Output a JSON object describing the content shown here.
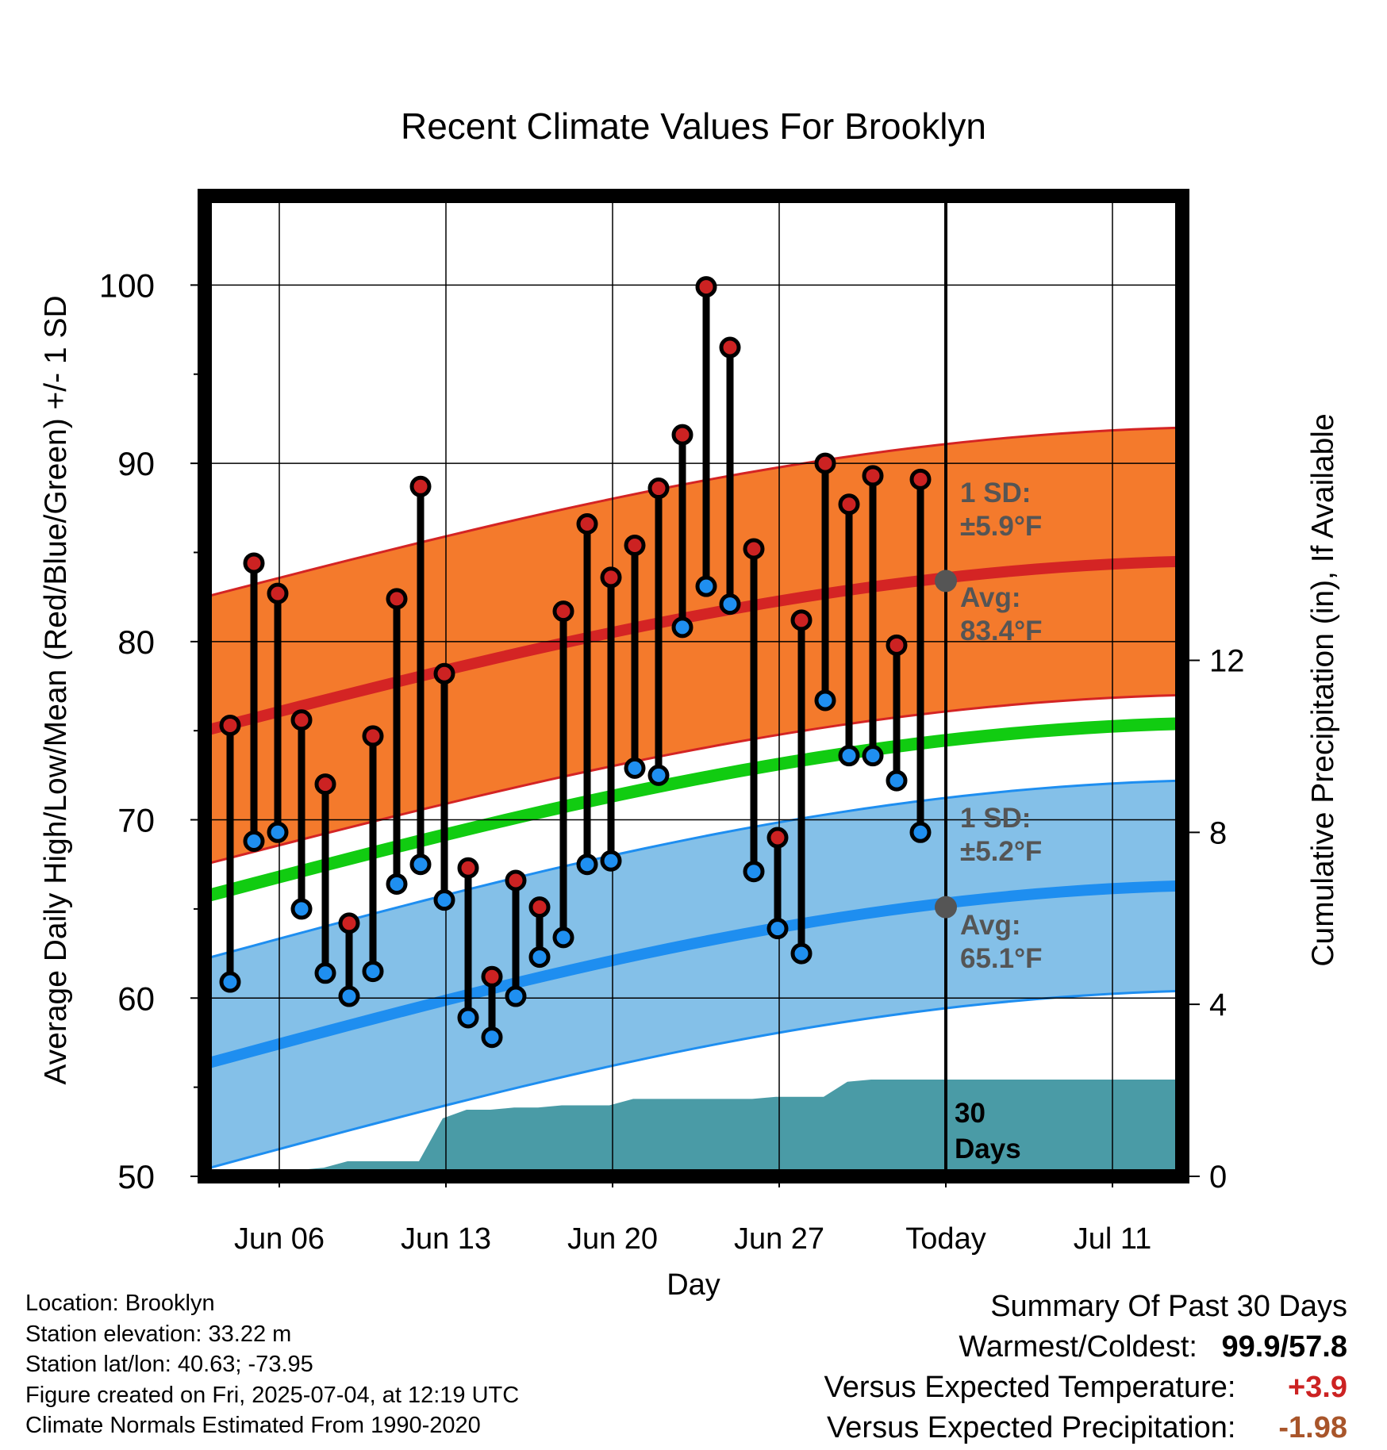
{
  "chart_data": {
    "type": "line",
    "title": "Recent Climate Values For Brooklyn",
    "xlabel": "Day",
    "ylabel": "Average Daily High/Low/Mean (Red/Blue/Green) +/- 1 SD",
    "y2label": "Cumulative Precipitation (in), If Available",
    "ylim": [
      50,
      105
    ],
    "y2lim": [
      0,
      22.8
    ],
    "yticks": [
      "50",
      "60",
      "70",
      "80",
      "90",
      "100"
    ],
    "y2ticks": [
      "0",
      "4",
      "8",
      "12"
    ],
    "xticks": [
      "Jun 06",
      "Jun 13",
      "Jun 20",
      "Jun 27",
      "Today",
      "Jul 11"
    ],
    "grid": true,
    "days": [
      "Jun 04",
      "Jun 05",
      "Jun 06",
      "Jun 07",
      "Jun 08",
      "Jun 09",
      "Jun 10",
      "Jun 11",
      "Jun 12",
      "Jun 13",
      "Jun 14",
      "Jun 15",
      "Jun 16",
      "Jun 17",
      "Jun 18",
      "Jun 19",
      "Jun 20",
      "Jun 21",
      "Jun 22",
      "Jun 23",
      "Jun 24",
      "Jun 25",
      "Jun 26",
      "Jun 27",
      "Jun 28",
      "Jun 29",
      "Jun 30",
      "Jul 01",
      "Jul 02",
      "Jul 03"
    ],
    "series": [
      {
        "name": "High",
        "values": [
          75.3,
          84.4,
          82.7,
          75.6,
          72.0,
          64.2,
          74.7,
          82.4,
          88.7,
          78.2,
          67.3,
          61.2,
          66.6,
          65.1,
          81.7,
          86.6,
          83.6,
          85.4,
          88.6,
          91.6,
          99.9,
          96.5,
          85.2,
          69.0,
          81.2,
          90.0,
          87.7,
          89.3,
          79.8,
          89.1
        ]
      },
      {
        "name": "Low",
        "values": [
          60.9,
          68.8,
          69.3,
          65.0,
          61.4,
          60.1,
          61.5,
          66.4,
          67.5,
          65.5,
          58.9,
          57.8,
          60.1,
          62.3,
          63.4,
          67.5,
          67.7,
          72.9,
          72.5,
          80.8,
          83.1,
          82.1,
          67.1,
          63.9,
          62.5,
          76.7,
          73.6,
          73.6,
          72.2,
          69.3
        ]
      }
    ],
    "bands": [
      {
        "name": "Normal High",
        "center_start": 75.0,
        "center_end": 84.5,
        "sd_label": "1 SD:",
        "sd_value": "±5.9°F",
        "avg_label": "Avg:",
        "avg_value": "83.4°F",
        "color": "#f47a2c",
        "line_color": "#d42424"
      },
      {
        "name": "Normal Low",
        "center_start": 56.3,
        "center_end": 66.3,
        "sd_label": "1 SD:",
        "sd_value": "±5.2°F",
        "avg_label": "Avg:",
        "avg_value": "65.1°F",
        "color": "#84c0e8",
        "line_color": "#1e8ef0"
      },
      {
        "name": "Normal Mean",
        "center_start": 65.7,
        "center_end": 75.4,
        "color": "#11cc11"
      }
    ],
    "precip_cumulative": [
      0,
      0,
      0,
      0.1,
      0.15,
      0.2,
      0.35,
      0.35,
      0.35,
      0.35,
      1.35,
      1.55,
      1.55,
      1.6,
      1.6,
      1.65,
      1.65,
      1.65,
      1.8,
      1.8,
      1.8,
      1.8,
      1.8,
      1.8,
      1.85,
      1.85,
      1.85,
      2.2,
      2.25,
      2.25,
      2.25
    ],
    "precip_color": "#4a9ba6",
    "precip_label": [
      "30",
      "Days"
    ],
    "colors": {
      "high": "#cc2222",
      "low": "#1f8ff0",
      "marker_today": "#555555"
    }
  },
  "footer": {
    "location": "Location: Brooklyn",
    "elevation": "Station elevation: 33.22 m",
    "latlon": "Station lat/lon: 40.63; -73.95",
    "created": "Figure created on Fri, 2025-07-04, at 12:19 UTC",
    "normals": "Climate Normals Estimated From 1990-2020"
  },
  "summary": {
    "title": "Summary Of Past 30 Days",
    "warm_cold_label": "Warmest/Coldest:",
    "warm_cold_value": "99.9/57.8",
    "temp_label": "Versus Expected Temperature:",
    "temp_value": "+3.9",
    "temp_color": "#cc2222",
    "precip_label": "Versus Expected Precipitation:",
    "precip_value": "-1.98",
    "precip_color": "#a8552a"
  }
}
